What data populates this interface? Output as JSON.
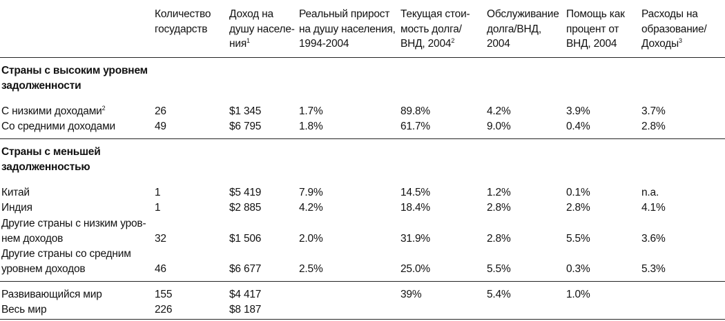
{
  "header": {
    "col_count": "Количество\nгосударств",
    "col_income": "Доход на\nдушу населе-\nния",
    "col_income_note": "1",
    "col_growth": "Реальный прирост\nна душу населения,\n1994-2004",
    "col_debt": "Текущая стои-\nмость долга/\nВНД, 2004",
    "col_debt_note": "2",
    "col_service": "Обслуживание\nдолга/ВНД,\n2004",
    "col_aid": "Помощь как\nпроцент от\nВНД, 2004",
    "col_edu": "Расходы на\nобразование/\nДоходы",
    "col_edu_note": "3"
  },
  "sections": {
    "high_debt": {
      "title": "Страны с высоким уровнем\nзадолженности",
      "rows": [
        {
          "label": "С низкими доходами",
          "note": "2",
          "count": "26",
          "income": "$1 345",
          "growth": "1.7%",
          "debt": "89.8%",
          "service": "4.2%",
          "aid": "3.9%",
          "edu": "3.7%"
        },
        {
          "label": "Со средними доходами",
          "note": "",
          "count": "49",
          "income": "$6 795",
          "growth": "1.8%",
          "debt": "61.7%",
          "service": "9.0%",
          "aid": "0.4%",
          "edu": "2.8%"
        }
      ]
    },
    "low_debt": {
      "title": "Страны с меньшей\nзадолженностью",
      "rows": [
        {
          "label": "Китай",
          "count": "1",
          "income": "$5 419",
          "growth": "7.9%",
          "debt": "14.5%",
          "service": "1.2%",
          "aid": "0.1%",
          "edu": "n.a."
        },
        {
          "label": "Индия",
          "count": "1",
          "income": "$2 885",
          "growth": "4.2%",
          "debt": "18.4%",
          "service": "2.8%",
          "aid": "2.8%",
          "edu": "4.1%"
        },
        {
          "label_line1": "Другие страны с низким уров-",
          "label_line2": "нем доходов",
          "count": "32",
          "income": "$1 506",
          "growth": "2.0%",
          "debt": "31.9%",
          "service": "2.8%",
          "aid": "5.5%",
          "edu": "3.6%"
        },
        {
          "label_line1": "Другие страны со средним",
          "label_line2": "уровнем доходов",
          "count": "46",
          "income": "$6 677",
          "growth": "2.5%",
          "debt": "25.0%",
          "service": "5.5%",
          "aid": "0.3%",
          "edu": "5.3%"
        }
      ]
    },
    "totals": {
      "rows": [
        {
          "label": "Развивающийся мир",
          "count": "155",
          "income": "$4 417",
          "growth": "",
          "debt": "39%",
          "service": "5.4%",
          "aid": "1.0%",
          "edu": ""
        },
        {
          "label": "Весь мир",
          "count": "226",
          "income": "$8 187",
          "growth": "",
          "debt": "",
          "service": "",
          "aid": "",
          "edu": ""
        }
      ]
    }
  }
}
